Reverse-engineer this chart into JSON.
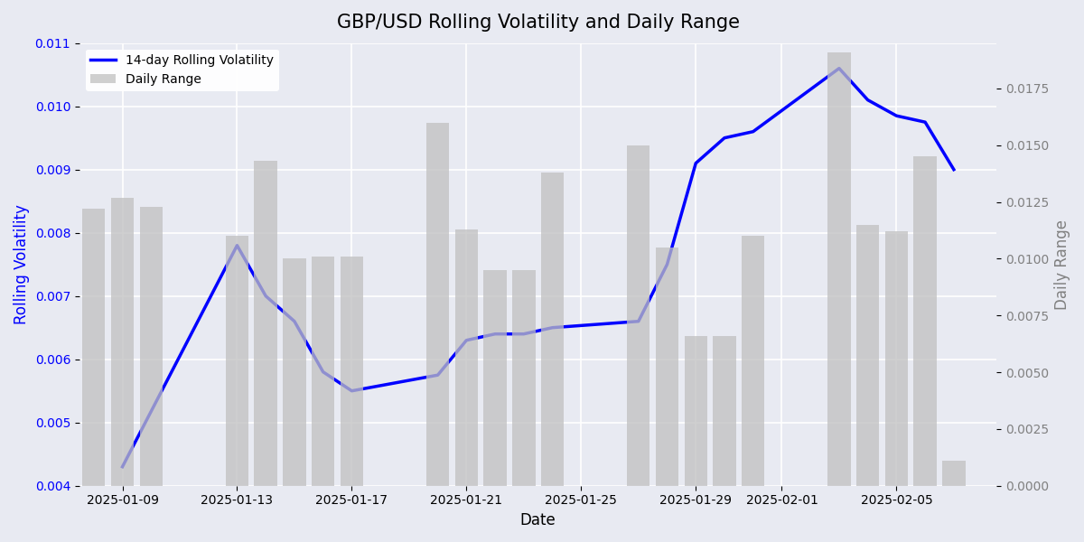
{
  "title": "GBP/USD Rolling Volatility and Daily Range",
  "xlabel": "Date",
  "ylabel_left": "Rolling Volatility",
  "ylabel_right": "Daily Range",
  "legend_line": "14-day Rolling Volatility",
  "legend_bar": "Daily Range",
  "background_color": "#e8eaf2",
  "dates": [
    "2025-01-08",
    "2025-01-09",
    "2025-01-10",
    "2025-01-13",
    "2025-01-14",
    "2025-01-15",
    "2025-01-16",
    "2025-01-17",
    "2025-01-20",
    "2025-01-21",
    "2025-01-22",
    "2025-01-23",
    "2025-01-24",
    "2025-01-27",
    "2025-01-28",
    "2025-01-29",
    "2025-01-30",
    "2025-01-31",
    "2025-02-03",
    "2025-02-04",
    "2025-02-05",
    "2025-02-06",
    "2025-02-07"
  ],
  "volatility": [
    null,
    0.0043,
    null,
    0.0078,
    0.007,
    0.0066,
    0.0058,
    0.0055,
    0.00575,
    0.0063,
    0.0064,
    0.0064,
    0.0065,
    0.0066,
    0.0075,
    0.0091,
    0.0095,
    0.0096,
    0.0106,
    0.0101,
    0.00985,
    0.00975,
    0.009
  ],
  "daily_range": [
    0.0122,
    0.0127,
    0.0123,
    0.011,
    0.0143,
    0.01,
    0.0101,
    0.0101,
    0.016,
    0.0113,
    0.0095,
    0.0095,
    0.0138,
    0.015,
    0.0105,
    0.0066,
    0.0066,
    0.011,
    0.0191,
    0.0115,
    0.0112,
    0.0145,
    0.0011
  ],
  "line_color": "blue",
  "bar_color": "#c0c0c0",
  "bar_alpha": 0.75,
  "line_width": 2.5,
  "ylim_left": [
    0.004,
    0.011
  ],
  "ylim_right": [
    0.0,
    0.0195
  ],
  "yticks_left": [
    0.004,
    0.005,
    0.006,
    0.007,
    0.008,
    0.009,
    0.01,
    0.011
  ],
  "yticks_right": [
    0.0,
    0.0025,
    0.005,
    0.0075,
    0.01,
    0.0125,
    0.015,
    0.0175
  ],
  "xtick_labels": [
    "2025-01-09",
    "2025-01-13",
    "2025-01-17",
    "2025-01-21",
    "2025-01-25",
    "2025-01-29",
    "2025-02-01",
    "2025-02-05"
  ],
  "grid_color": "white",
  "legend_loc": "upper left"
}
